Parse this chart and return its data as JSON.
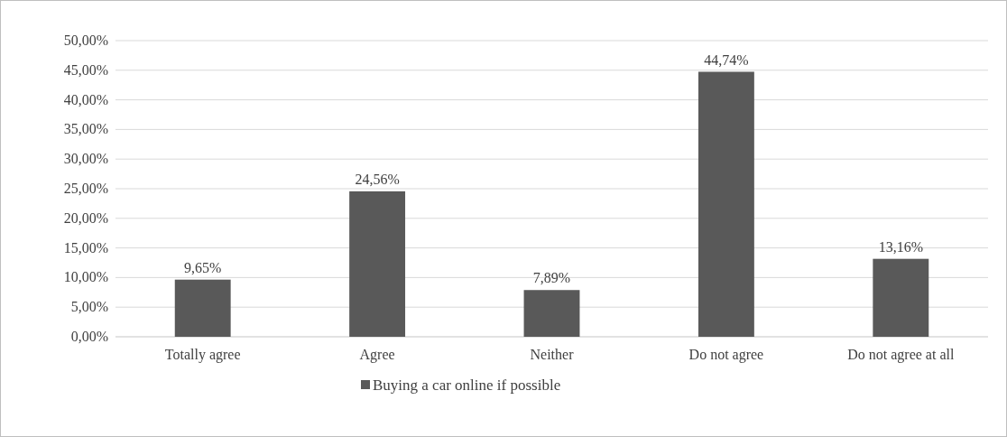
{
  "chart_data": {
    "type": "bar",
    "categories": [
      "Totally agree",
      "Agree",
      "Neither",
      "Do not agree",
      "Do not agree at all"
    ],
    "series": [
      {
        "name": "Buying a car online if possible",
        "color": "#595959",
        "values": [
          9.65,
          24.56,
          7.89,
          44.74,
          13.16
        ],
        "value_labels": [
          "9,65%",
          "24,56%",
          "7,89%",
          "44,74%",
          "13,16%"
        ]
      }
    ],
    "ylim": [
      0,
      50
    ],
    "yticks": [
      {
        "value": 0,
        "label": "0,00%"
      },
      {
        "value": 5,
        "label": "5,00%"
      },
      {
        "value": 10,
        "label": "10,00%"
      },
      {
        "value": 15,
        "label": "15,00%"
      },
      {
        "value": 20,
        "label": "20,00%"
      },
      {
        "value": 25,
        "label": "25,00%"
      },
      {
        "value": 30,
        "label": "30,00%"
      },
      {
        "value": 35,
        "label": "35,00%"
      },
      {
        "value": 40,
        "label": "40,00%"
      },
      {
        "value": 45,
        "label": "45,00%"
      },
      {
        "value": 50,
        "label": "50,00%"
      }
    ],
    "grid": "y",
    "legend": "bottom"
  }
}
